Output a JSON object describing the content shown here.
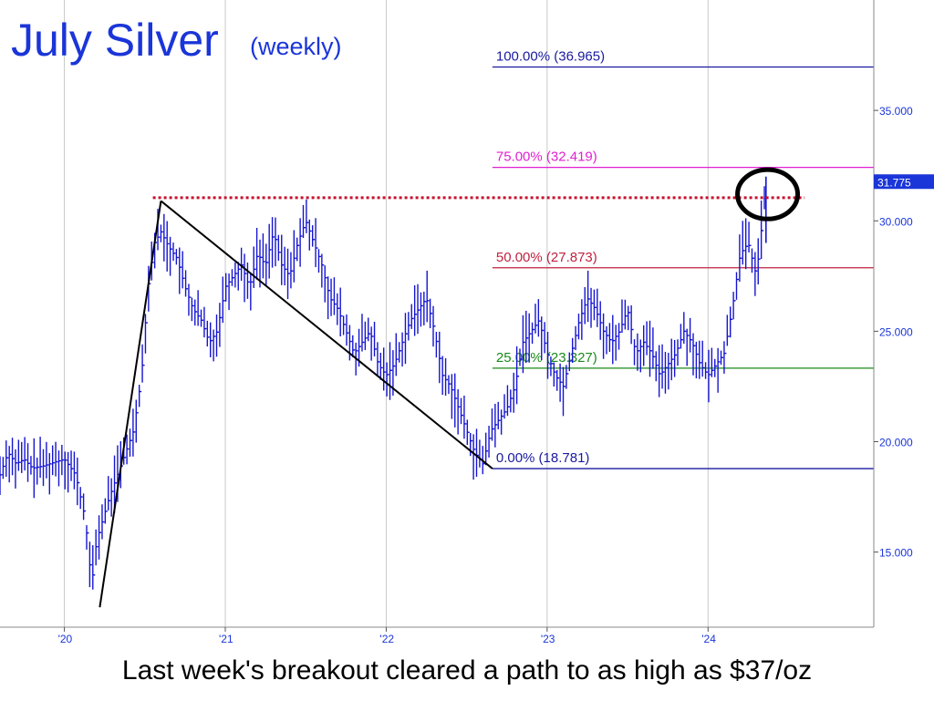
{
  "chart_data": {
    "type": "bar",
    "subtype": "ohlc-price-chart",
    "title": "July Silver",
    "subtitle": "(weekly)",
    "caption": "Last week's breakout cleared a path to as high as $37/oz",
    "x_ticks": [
      "'20",
      "'21",
      "'22",
      "'23",
      "'24"
    ],
    "y_ticks": [
      "15.000",
      "20.000",
      "25.000",
      "30.000",
      "35.000"
    ],
    "ylim": [
      11.6,
      40.0
    ],
    "xlim": [
      2019.6,
      2025.03
    ],
    "grid": true,
    "last_price": "31.775",
    "colors": {
      "title": "#1a35d8",
      "price_bars": "#1515d0",
      "grid": "#c8c8c8",
      "level_100": "#1a1aa0",
      "level_75": "#e020d0",
      "level_50": "#c0223f",
      "level_25": "#1a8a1a",
      "level_0": "#1a1aa0",
      "resistance": "#c8102e",
      "price_badge": "#1a35d8"
    },
    "retracement_levels": [
      {
        "label": "100.00% (36.965)",
        "value": 36.965,
        "color": "#1a1aa0"
      },
      {
        "label": "75.00% (32.419)",
        "value": 32.419,
        "color": "#e020d0"
      },
      {
        "label": "50.00% (27.873)",
        "value": 27.873,
        "color": "#c0223f"
      },
      {
        "label": "25.00% (23.327)",
        "value": 23.327,
        "color": "#1a8a1a"
      },
      {
        "label": "0.00% (18.781)",
        "value": 18.781,
        "color": "#1a1aa0"
      }
    ],
    "resistance_line": {
      "value": 31.05,
      "from_x": 2020.55,
      "to_x": 2024.6
    },
    "trend_lines": [
      [
        [
          2020.22,
          12.5
        ],
        [
          2020.6,
          30.9
        ]
      ],
      [
        [
          2020.6,
          30.9
        ],
        [
          2022.66,
          18.781
        ]
      ]
    ],
    "highlight_ellipse": {
      "center_x": 2024.37,
      "center_y": 31.2
    },
    "series": [
      {
        "name": "",
        "x": [
          2019.6,
          2019.65,
          2019.7,
          2019.75,
          2019.8,
          2019.87,
          2019.95,
          2020.0,
          2020.07,
          2020.13,
          2020.17,
          2020.2,
          2020.24,
          2020.28,
          2020.33,
          2020.38,
          2020.43,
          2020.48,
          2020.52,
          2020.56,
          2020.6,
          2020.65,
          2020.7,
          2020.75,
          2020.8,
          2020.85,
          2020.9,
          2020.95,
          2021.0,
          2021.05,
          2021.1,
          2021.15,
          2021.2,
          2021.25,
          2021.3,
          2021.35,
          2021.4,
          2021.45,
          2021.5,
          2021.55,
          2021.6,
          2021.65,
          2021.7,
          2021.75,
          2021.8,
          2021.85,
          2021.9,
          2021.95,
          2022.0,
          2022.05,
          2022.1,
          2022.15,
          2022.2,
          2022.25,
          2022.3,
          2022.35,
          2022.4,
          2022.45,
          2022.5,
          2022.55,
          2022.6,
          2022.65,
          2022.7,
          2022.75,
          2022.8,
          2022.85,
          2022.9,
          2022.95,
          2023.0,
          2023.05,
          2023.1,
          2023.15,
          2023.2,
          2023.25,
          2023.3,
          2023.35,
          2023.4,
          2023.45,
          2023.5,
          2023.55,
          2023.6,
          2023.65,
          2023.7,
          2023.75,
          2023.8,
          2023.85,
          2023.9,
          2023.95,
          2024.0,
          2024.05,
          2024.1,
          2024.15,
          2024.2,
          2024.25,
          2024.3,
          2024.33,
          2024.36
        ],
        "values": [
          18.5,
          19.5,
          19.0,
          19.2,
          18.8,
          18.9,
          19.1,
          19.2,
          18.5,
          16.5,
          13.5,
          15.5,
          16.5,
          17.5,
          18.5,
          19.5,
          20.5,
          23.0,
          27.0,
          29.0,
          29.5,
          28.8,
          28.3,
          27.0,
          26.0,
          25.5,
          24.5,
          25.0,
          27.0,
          27.5,
          28.0,
          27.0,
          28.5,
          28.0,
          29.5,
          28.0,
          27.5,
          29.0,
          30.0,
          29.0,
          28.0,
          26.5,
          26.0,
          25.0,
          24.0,
          24.5,
          25.0,
          23.5,
          23.0,
          23.5,
          24.5,
          25.5,
          26.0,
          26.5,
          25.0,
          23.0,
          22.5,
          21.5,
          20.5,
          19.5,
          19.0,
          20.5,
          21.0,
          21.5,
          22.5,
          24.5,
          25.0,
          25.5,
          24.0,
          23.0,
          22.5,
          24.0,
          25.5,
          26.5,
          26.0,
          25.0,
          24.5,
          25.0,
          26.0,
          24.0,
          24.5,
          24.0,
          23.0,
          23.5,
          24.0,
          25.0,
          24.5,
          23.5,
          23.0,
          23.5,
          24.0,
          26.0,
          28.5,
          29.0,
          27.5,
          29.5,
          31.775
        ]
      }
    ]
  }
}
